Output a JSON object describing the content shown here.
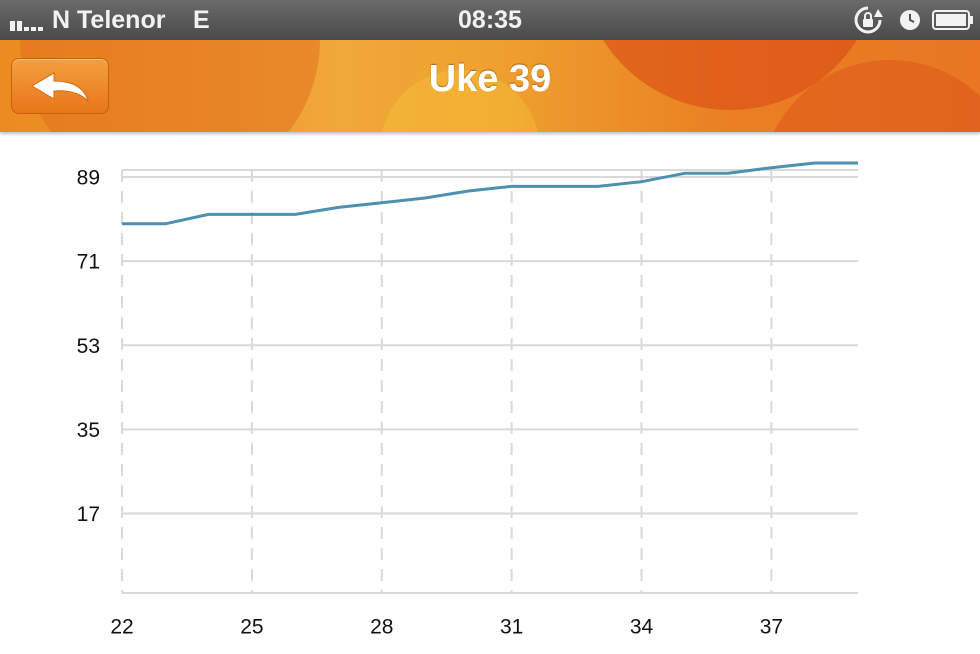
{
  "status_bar": {
    "carrier": "N Telenor",
    "network": "E",
    "time": "08:35",
    "icons": [
      "signal-icon",
      "rotation-lock-icon",
      "alarm-icon",
      "battery-icon"
    ]
  },
  "nav": {
    "title": "Uke 39",
    "back_icon": "back-arrow-icon"
  },
  "colors": {
    "line": "#4f8fb0",
    "grid": "#d9d9d9",
    "nav_orange": "#ec8a21"
  },
  "chart_data": {
    "type": "line",
    "title": "",
    "xlabel": "",
    "ylabel": "",
    "x_ticks": [
      22,
      25,
      28,
      31,
      34,
      37
    ],
    "y_ticks": [
      17,
      35,
      53,
      71,
      89
    ],
    "xlim": [
      22,
      39
    ],
    "ylim": [
      0,
      89
    ],
    "grid": true,
    "series": [
      {
        "x": [
          22,
          23,
          24,
          25,
          26,
          27,
          28,
          29,
          30,
          31,
          32,
          33,
          34,
          35,
          36,
          37,
          38,
          39
        ],
        "values": [
          79,
          79,
          81,
          81,
          81,
          82.5,
          83.5,
          84.5,
          86,
          87,
          87,
          87,
          88,
          89.8,
          89.8,
          91,
          92,
          92
        ]
      }
    ]
  }
}
